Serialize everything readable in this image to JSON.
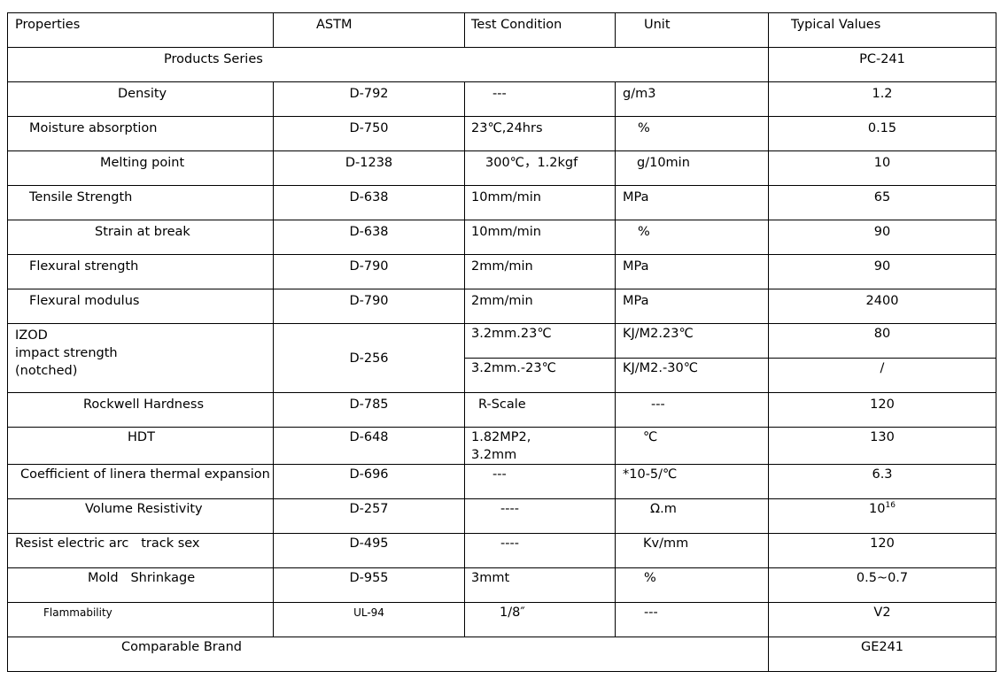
{
  "header": {
    "property": "Properties",
    "astm": "ASTM",
    "condition": "Test Condition",
    "unit": "Unit",
    "value": "Typical Values"
  },
  "series": {
    "label": "Products Series",
    "value": "PC-241"
  },
  "rows": [
    {
      "property": "Density",
      "astm": "D-792",
      "condition": "---",
      "unit": "g/m3",
      "value": "1.2"
    },
    {
      "property": "Moisture absorption",
      "astm": "D-750",
      "condition": "23℃,24hrs",
      "unit": "%",
      "value": "0.15"
    },
    {
      "property": "Melting point",
      "astm": "D-1238",
      "condition": "300℃，1.2kgf",
      "unit": "g/10min",
      "value": "10"
    },
    {
      "property": "Tensile Strength",
      "astm": "D-638",
      "condition": "10mm/min",
      "unit": "MPa",
      "value": "65"
    },
    {
      "property": "Strain at break",
      "astm": "D-638",
      "condition": "10mm/min",
      "unit": "%",
      "value": "90"
    },
    {
      "property": "Flexural strength",
      "astm": "D-790",
      "condition": "2mm/min",
      "unit": "MPa",
      "value": "90"
    },
    {
      "property": "Flexural modulus",
      "astm": "D-790",
      "condition": "2mm/min",
      "unit": "MPa",
      "value": "2400"
    }
  ],
  "izod": {
    "property_lines": [
      "IZOD",
      "impact strength",
      "(notched)"
    ],
    "astm": "D-256",
    "sub": [
      {
        "condition": "3.2mm.23℃",
        "unit": "KJ/M2.23℃",
        "value": "80"
      },
      {
        "condition": "3.2mm.-23℃",
        "unit": "KJ/M2.-30℃",
        "value": "/"
      }
    ]
  },
  "rows2": [
    {
      "property": "Rockwell Hardness",
      "astm": "D-785",
      "condition": "R-Scale",
      "unit": "---",
      "value": "120"
    },
    {
      "property": "HDT",
      "astm": "D-648",
      "condition_lines": [
        "1.82MP2,",
        "3.2mm"
      ],
      "unit": "℃",
      "value": "130"
    },
    {
      "property": "Coefficient of linera thermal expansion",
      "astm": "D-696",
      "condition": "---",
      "unit": "*10-5/℃",
      "value": "6.3"
    },
    {
      "property": "Volume Resistivity",
      "astm": "D-257",
      "condition": "----",
      "unit": "Ω.m",
      "value_base": "10",
      "value_exp": "16"
    },
    {
      "property": "Resist electric arc   track sex",
      "astm": "D-495",
      "condition": "----",
      "unit": "Kv/mm",
      "value": "120"
    },
    {
      "property": "Mold   Shrinkage",
      "astm": "D-955",
      "condition": "3mmt",
      "unit": "%",
      "value": "0.5~0.7"
    },
    {
      "property": "Flammability",
      "astm": "UL-94",
      "condition": "1/8″",
      "unit": "---",
      "value": "V2"
    }
  ],
  "brand": {
    "label": "Comparable Brand",
    "value": "GE241"
  }
}
